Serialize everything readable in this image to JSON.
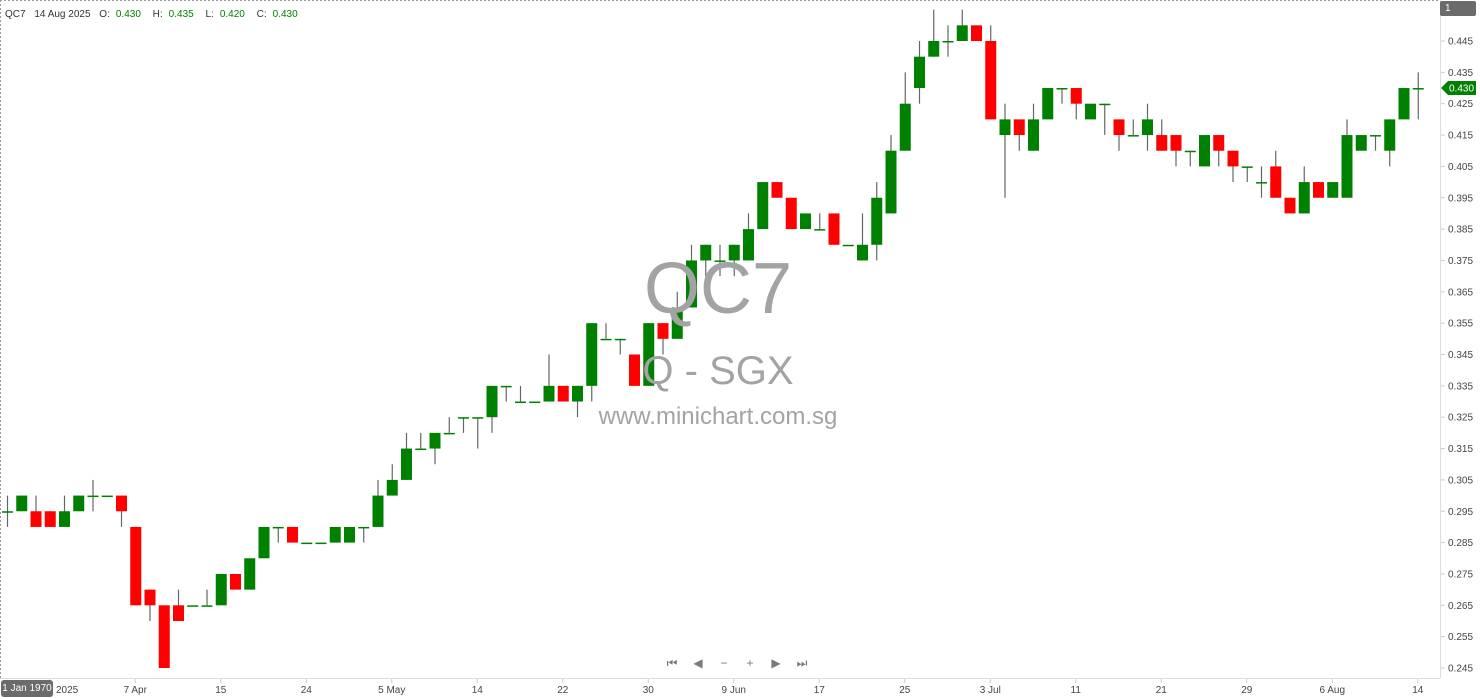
{
  "header": {
    "symbol": "QC7",
    "date": "14 Aug 2025",
    "o_label": "O:",
    "o": "0.430",
    "h_label": "H:",
    "h": "0.435",
    "l_label": "L:",
    "l": "0.420",
    "c_label": "C:",
    "c": "0.430"
  },
  "watermark": {
    "symbol": "QC7",
    "exchange": "Q - SGX",
    "site": "www.minichart.com.sg"
  },
  "badge": "1",
  "crosshair_date": "1 Jan 1970",
  "last_price_tag": "0.430",
  "nav": {
    "first": "⏮",
    "prev": "◀",
    "zoom_out": "−",
    "zoom_in": "+",
    "next": "▶",
    "last": "⏭"
  },
  "colors": {
    "up": "#008000",
    "down": "#ff0000",
    "wick": "#666666",
    "axis": "#dddddd",
    "watermark": "#a3a3a3"
  },
  "chart_data": {
    "type": "candlestick",
    "title": "",
    "ylim": [
      0.24,
      0.455
    ],
    "y_ticks": [
      "0.445",
      "0.435",
      "0.425",
      "0.415",
      "0.405",
      "0.395",
      "0.385",
      "0.375",
      "0.365",
      "0.355",
      "0.345",
      "0.335",
      "0.325",
      "0.315",
      "0.305",
      "0.295",
      "0.285",
      "0.275",
      "0.265",
      "0.255",
      "0.245"
    ],
    "x_ticks": [
      {
        "index": 3,
        "label": "2025"
      },
      {
        "index": 9,
        "label": "7 Apr"
      },
      {
        "index": 15,
        "label": "15"
      },
      {
        "index": 21,
        "label": "24"
      },
      {
        "index": 27,
        "label": "5 May"
      },
      {
        "index": 33,
        "label": "14"
      },
      {
        "index": 39,
        "label": "22"
      },
      {
        "index": 45,
        "label": "30"
      },
      {
        "index": 51,
        "label": "9 Jun"
      },
      {
        "index": 57,
        "label": "17"
      },
      {
        "index": 63,
        "label": "25"
      },
      {
        "index": 69,
        "label": "3 Jul"
      },
      {
        "index": 75,
        "label": "11"
      },
      {
        "index": 81,
        "label": "21"
      },
      {
        "index": 87,
        "label": "29"
      },
      {
        "index": 93,
        "label": "6 Aug"
      },
      {
        "index": 99,
        "label": "14"
      }
    ],
    "ohlc_fields": [
      "open",
      "high",
      "low",
      "close"
    ],
    "ohlc": [
      [
        0.295,
        0.3,
        0.29,
        0.295
      ],
      [
        0.295,
        0.3,
        0.295,
        0.3
      ],
      [
        0.295,
        0.3,
        0.29,
        0.29
      ],
      [
        0.295,
        0.295,
        0.29,
        0.29
      ],
      [
        0.29,
        0.3,
        0.29,
        0.295
      ],
      [
        0.295,
        0.3,
        0.295,
        0.3
      ],
      [
        0.3,
        0.305,
        0.295,
        0.3
      ],
      [
        0.3,
        0.3,
        0.3,
        0.3
      ],
      [
        0.3,
        0.3,
        0.29,
        0.295
      ],
      [
        0.29,
        0.29,
        0.265,
        0.265
      ],
      [
        0.27,
        0.27,
        0.26,
        0.265
      ],
      [
        0.265,
        0.265,
        0.245,
        0.245
      ],
      [
        0.265,
        0.27,
        0.26,
        0.26
      ],
      [
        0.265,
        0.265,
        0.265,
        0.265
      ],
      [
        0.265,
        0.27,
        0.265,
        0.265
      ],
      [
        0.265,
        0.275,
        0.265,
        0.275
      ],
      [
        0.275,
        0.275,
        0.27,
        0.27
      ],
      [
        0.27,
        0.28,
        0.27,
        0.28
      ],
      [
        0.28,
        0.29,
        0.28,
        0.29
      ],
      [
        0.29,
        0.29,
        0.285,
        0.29
      ],
      [
        0.29,
        0.29,
        0.285,
        0.285
      ],
      [
        0.285,
        0.285,
        0.285,
        0.285
      ],
      [
        0.285,
        0.285,
        0.285,
        0.285
      ],
      [
        0.285,
        0.29,
        0.285,
        0.29
      ],
      [
        0.285,
        0.29,
        0.285,
        0.29
      ],
      [
        0.29,
        0.29,
        0.285,
        0.29
      ],
      [
        0.29,
        0.305,
        0.29,
        0.3
      ],
      [
        0.3,
        0.31,
        0.3,
        0.305
      ],
      [
        0.305,
        0.32,
        0.305,
        0.315
      ],
      [
        0.315,
        0.32,
        0.315,
        0.315
      ],
      [
        0.315,
        0.32,
        0.31,
        0.32
      ],
      [
        0.32,
        0.325,
        0.32,
        0.32
      ],
      [
        0.325,
        0.325,
        0.32,
        0.325
      ],
      [
        0.325,
        0.325,
        0.315,
        0.325
      ],
      [
        0.325,
        0.335,
        0.32,
        0.335
      ],
      [
        0.335,
        0.335,
        0.33,
        0.335
      ],
      [
        0.33,
        0.335,
        0.33,
        0.33
      ],
      [
        0.33,
        0.33,
        0.33,
        0.33
      ],
      [
        0.33,
        0.345,
        0.33,
        0.335
      ],
      [
        0.335,
        0.335,
        0.33,
        0.33
      ],
      [
        0.33,
        0.335,
        0.325,
        0.335
      ],
      [
        0.335,
        0.355,
        0.33,
        0.355
      ],
      [
        0.35,
        0.355,
        0.35,
        0.35
      ],
      [
        0.35,
        0.35,
        0.345,
        0.35
      ],
      [
        0.345,
        0.345,
        0.335,
        0.335
      ],
      [
        0.335,
        0.355,
        0.335,
        0.355
      ],
      [
        0.355,
        0.355,
        0.345,
        0.35
      ],
      [
        0.35,
        0.365,
        0.35,
        0.36
      ],
      [
        0.36,
        0.38,
        0.36,
        0.375
      ],
      [
        0.375,
        0.38,
        0.37,
        0.38
      ],
      [
        0.375,
        0.38,
        0.37,
        0.375
      ],
      [
        0.375,
        0.38,
        0.37,
        0.38
      ],
      [
        0.375,
        0.39,
        0.375,
        0.385
      ],
      [
        0.385,
        0.4,
        0.385,
        0.4
      ],
      [
        0.4,
        0.4,
        0.395,
        0.395
      ],
      [
        0.395,
        0.395,
        0.385,
        0.385
      ],
      [
        0.385,
        0.39,
        0.385,
        0.39
      ],
      [
        0.385,
        0.39,
        0.385,
        0.385
      ],
      [
        0.39,
        0.39,
        0.38,
        0.38
      ],
      [
        0.38,
        0.38,
        0.38,
        0.38
      ],
      [
        0.375,
        0.39,
        0.375,
        0.38
      ],
      [
        0.38,
        0.4,
        0.375,
        0.395
      ],
      [
        0.39,
        0.415,
        0.39,
        0.41
      ],
      [
        0.41,
        0.435,
        0.41,
        0.425
      ],
      [
        0.43,
        0.445,
        0.425,
        0.44
      ],
      [
        0.44,
        0.455,
        0.44,
        0.445
      ],
      [
        0.445,
        0.45,
        0.44,
        0.445
      ],
      [
        0.445,
        0.455,
        0.445,
        0.45
      ],
      [
        0.45,
        0.45,
        0.445,
        0.445
      ],
      [
        0.445,
        0.45,
        0.42,
        0.42
      ],
      [
        0.415,
        0.425,
        0.395,
        0.42
      ],
      [
        0.42,
        0.42,
        0.41,
        0.415
      ],
      [
        0.41,
        0.425,
        0.41,
        0.42
      ],
      [
        0.42,
        0.43,
        0.42,
        0.43
      ],
      [
        0.43,
        0.43,
        0.425,
        0.43
      ],
      [
        0.43,
        0.43,
        0.42,
        0.425
      ],
      [
        0.42,
        0.425,
        0.42,
        0.425
      ],
      [
        0.425,
        0.425,
        0.415,
        0.425
      ],
      [
        0.42,
        0.42,
        0.41,
        0.415
      ],
      [
        0.415,
        0.42,
        0.415,
        0.415
      ],
      [
        0.415,
        0.425,
        0.41,
        0.42
      ],
      [
        0.415,
        0.42,
        0.41,
        0.41
      ],
      [
        0.415,
        0.415,
        0.405,
        0.41
      ],
      [
        0.41,
        0.41,
        0.405,
        0.41
      ],
      [
        0.405,
        0.415,
        0.405,
        0.415
      ],
      [
        0.415,
        0.415,
        0.405,
        0.41
      ],
      [
        0.41,
        0.41,
        0.4,
        0.405
      ],
      [
        0.405,
        0.405,
        0.4,
        0.405
      ],
      [
        0.4,
        0.405,
        0.395,
        0.4
      ],
      [
        0.405,
        0.41,
        0.395,
        0.395
      ],
      [
        0.395,
        0.395,
        0.39,
        0.39
      ],
      [
        0.39,
        0.405,
        0.39,
        0.4
      ],
      [
        0.4,
        0.4,
        0.395,
        0.395
      ],
      [
        0.395,
        0.4,
        0.395,
        0.4
      ],
      [
        0.395,
        0.42,
        0.395,
        0.415
      ],
      [
        0.41,
        0.415,
        0.41,
        0.415
      ],
      [
        0.415,
        0.415,
        0.41,
        0.415
      ],
      [
        0.41,
        0.42,
        0.405,
        0.42
      ],
      [
        0.42,
        0.43,
        0.42,
        0.43
      ],
      [
        0.43,
        0.435,
        0.42,
        0.43
      ]
    ]
  }
}
